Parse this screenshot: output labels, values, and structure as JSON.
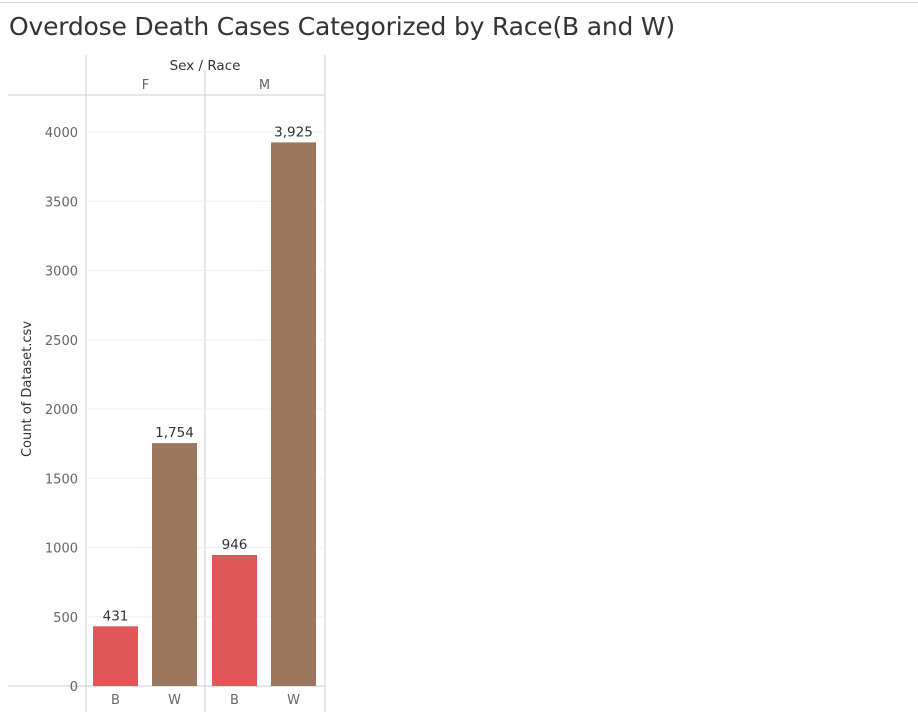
{
  "page": {
    "title": "Overdose Death Cases Categorized by Race(B and W)"
  },
  "chart_data": {
    "type": "bar",
    "title": "Overdose Death Cases Categorized by Race(B and W)",
    "column_header_title": "Sex / Race",
    "ylabel": "Count of Dataset.csv",
    "ylim": [
      0,
      4200
    ],
    "yticks": [
      0,
      500,
      1000,
      1500,
      2000,
      2500,
      3000,
      3500,
      4000
    ],
    "grid": true,
    "groups": [
      {
        "name": "F",
        "bars": [
          {
            "category": "B",
            "value": 431,
            "label": "431",
            "color": "#e15759"
          },
          {
            "category": "W",
            "value": 1754,
            "label": "1,754",
            "color": "#9d7660"
          }
        ]
      },
      {
        "name": "M",
        "bars": [
          {
            "category": "B",
            "value": 946,
            "label": "946",
            "color": "#e15759"
          },
          {
            "category": "W",
            "value": 3925,
            "label": "3,925",
            "color": "#9d7660"
          }
        ]
      }
    ]
  }
}
